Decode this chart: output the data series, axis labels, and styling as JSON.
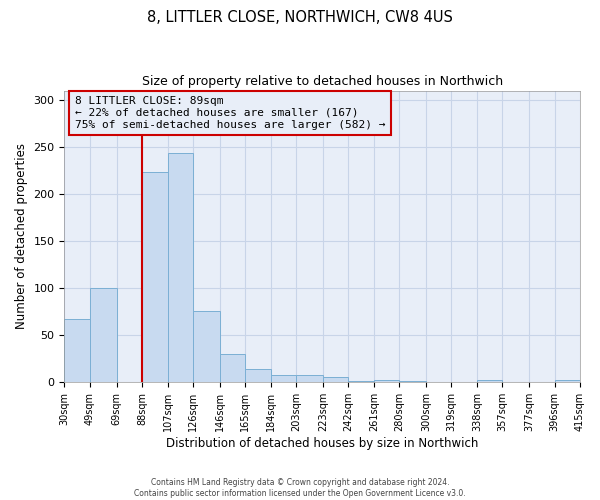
{
  "title": "8, LITTLER CLOSE, NORTHWICH, CW8 4US",
  "subtitle": "Size of property relative to detached houses in Northwich",
  "xlabel": "Distribution of detached houses by size in Northwich",
  "ylabel": "Number of detached properties",
  "bin_edges": [
    30,
    49,
    69,
    88,
    107,
    126,
    146,
    165,
    184,
    203,
    223,
    242,
    261,
    280,
    300,
    319,
    338,
    357,
    377,
    396,
    415
  ],
  "bar_heights": [
    67,
    100,
    0,
    224,
    244,
    76,
    30,
    14,
    8,
    8,
    6,
    1,
    2,
    1,
    0,
    0,
    2,
    0,
    0,
    2
  ],
  "bar_color": "#c8daf0",
  "bar_edge_color": "#7bafd4",
  "vline_x": 88,
  "vline_color": "#cc0000",
  "ylim": [
    0,
    310
  ],
  "yticks": [
    0,
    50,
    100,
    150,
    200,
    250,
    300
  ],
  "xtick_labels": [
    "30sqm",
    "49sqm",
    "69sqm",
    "88sqm",
    "107sqm",
    "126sqm",
    "146sqm",
    "165sqm",
    "184sqm",
    "203sqm",
    "223sqm",
    "242sqm",
    "261sqm",
    "280sqm",
    "300sqm",
    "319sqm",
    "338sqm",
    "357sqm",
    "377sqm",
    "396sqm",
    "415sqm"
  ],
  "annotation_title": "8 LITTLER CLOSE: 89sqm",
  "annotation_line1": "← 22% of detached houses are smaller (167)",
  "annotation_line2": "75% of semi-detached houses are larger (582) →",
  "annotation_box_color": "#cc0000",
  "grid_color": "#c8d4e8",
  "plot_bg_color": "#e8eef8",
  "fig_bg_color": "#ffffff",
  "footer1": "Contains HM Land Registry data © Crown copyright and database right 2024.",
  "footer2": "Contains public sector information licensed under the Open Government Licence v3.0."
}
